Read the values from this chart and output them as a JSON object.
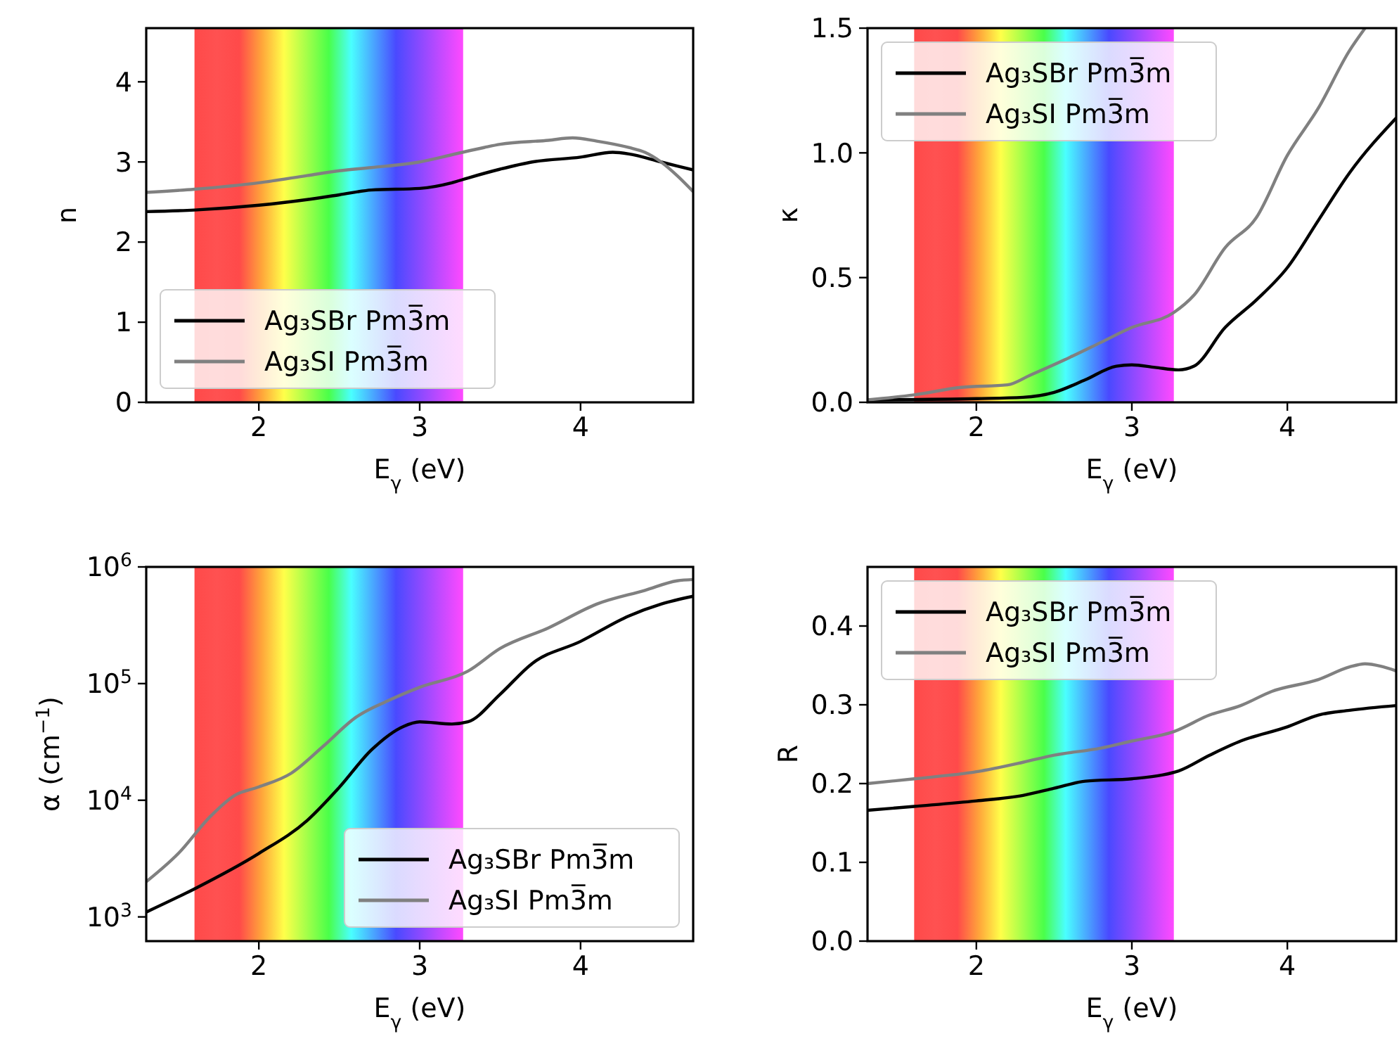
{
  "chart_data": [
    {
      "type": "line",
      "xlabel": "E$_{γ}$ (eV)",
      "ylabel": "n",
      "xlim": [
        1.3,
        4.7
      ],
      "xticks": [
        2,
        3,
        4
      ],
      "ylim": [
        0,
        4.67
      ],
      "yticks": [
        0,
        1,
        2,
        3,
        4
      ],
      "legend": "bottom left",
      "grid": false,
      "bands": [
        {
          "axis": "x",
          "from": 1.6,
          "to": 3.27
        }
      ],
      "series": [
        {
          "name": "Ag₃SBr Pm3̅m",
          "color": "#000000",
          "x": [
            1.3,
            1.6,
            2.0,
            2.3,
            2.5,
            2.7,
            3.0,
            3.2,
            3.3,
            3.5,
            3.7,
            4.0,
            4.2,
            4.3,
            4.5,
            4.7
          ],
          "values": [
            2.38,
            2.4,
            2.46,
            2.53,
            2.59,
            2.65,
            2.67,
            2.74,
            2.8,
            2.91,
            3.0,
            3.06,
            3.12,
            3.1,
            3.0,
            2.9
          ]
        },
        {
          "name": "Ag₃SI Pm3̅m",
          "color": "#808080",
          "x": [
            1.3,
            1.6,
            2.0,
            2.3,
            2.5,
            2.7,
            3.0,
            3.2,
            3.4,
            3.5,
            3.8,
            3.95,
            4.1,
            4.3,
            4.4,
            4.5,
            4.6,
            4.7
          ],
          "values": [
            2.62,
            2.66,
            2.74,
            2.83,
            2.89,
            2.93,
            3.0,
            3.09,
            3.18,
            3.22,
            3.27,
            3.3,
            3.26,
            3.18,
            3.12,
            3.0,
            2.83,
            2.63
          ]
        }
      ]
    },
    {
      "type": "line",
      "xlabel": "E$_{γ}$ (eV)",
      "ylabel": "κ",
      "xlim": [
        1.3,
        4.7
      ],
      "xticks": [
        2,
        3,
        4
      ],
      "ylim": [
        0,
        1.5
      ],
      "yticks": [
        {
          "value": 0,
          "label": "0.0"
        },
        0.5,
        {
          "value": 1,
          "label": "1.0"
        },
        1.5
      ],
      "legend": "top left",
      "grid": false,
      "bands": [
        {
          "axis": "x",
          "from": 1.6,
          "to": 3.27
        }
      ],
      "series": [
        {
          "name": "Ag₃SBr Pm3̅m",
          "color": "#000000",
          "x": [
            1.3,
            2.0,
            2.3,
            2.5,
            2.7,
            2.9,
            3.0,
            3.15,
            3.3,
            3.4,
            3.6,
            3.8,
            4.0,
            4.2,
            4.4,
            4.7
          ],
          "values": [
            0.01,
            0.015,
            0.02,
            0.04,
            0.09,
            0.145,
            0.15,
            0.14,
            0.13,
            0.145,
            0.3,
            0.41,
            0.54,
            0.73,
            0.92,
            1.14
          ]
        },
        {
          "name": "Ag₃SI Pm3̅m",
          "color": "#808080",
          "x": [
            1.3,
            1.6,
            1.9,
            2.2,
            2.35,
            2.6,
            2.8,
            3.0,
            3.27,
            3.4,
            3.6,
            3.8,
            4.0,
            4.2,
            4.4,
            4.5
          ],
          "values": [
            0.01,
            0.03,
            0.06,
            0.07,
            0.11,
            0.18,
            0.24,
            0.3,
            0.36,
            0.43,
            0.62,
            0.74,
            0.99,
            1.18,
            1.41,
            1.5
          ]
        }
      ]
    },
    {
      "type": "line",
      "xlabel": "E$_{γ}$ (eV)",
      "ylabel": "α (cm$^{−1}$)",
      "log": "y",
      "xlim": [
        1.3,
        4.7
      ],
      "xticks": [
        2,
        3,
        4
      ],
      "ylim": [
        620,
        1000000
      ],
      "yticks": [
        {
          "value": 1000,
          "label": "10$^{3}$"
        },
        {
          "value": 10000,
          "label": "10$^{4}$"
        },
        {
          "value": 100000,
          "label": "10$^{5}$"
        },
        {
          "value": 1000000,
          "label": "10$^{6}$"
        }
      ],
      "legend": "bottom right",
      "grid": false,
      "bands": [
        {
          "axis": "x",
          "from": 1.6,
          "to": 3.27
        }
      ],
      "series": [
        {
          "name": "Ag₃SBr Pm3̅m",
          "color": "#000000",
          "x": [
            1.3,
            1.6,
            2.0,
            2.3,
            2.5,
            2.7,
            2.9,
            3.0,
            3.2,
            3.3,
            3.5,
            3.7,
            4.0,
            4.3,
            4.5,
            4.7
          ],
          "values": [
            1100,
            1740,
            3500,
            6700,
            12900,
            27000,
            43000,
            47000,
            45000,
            47000,
            81000,
            149000,
            230000,
            380000,
            480000,
            560000
          ]
        },
        {
          "name": "Ag₃SI Pm3̅m",
          "color": "#808080",
          "x": [
            1.3,
            1.5,
            1.7,
            1.85,
            2.0,
            2.2,
            2.4,
            2.6,
            2.8,
            3.0,
            3.3,
            3.5,
            3.8,
            4.1,
            4.4,
            4.6,
            4.7
          ],
          "values": [
            2000,
            3500,
            7300,
            11000,
            13000,
            17000,
            29000,
            51000,
            71000,
            93000,
            128000,
            200000,
            300000,
            480000,
            630000,
            760000,
            780000
          ]
        }
      ]
    },
    {
      "type": "line",
      "xlabel": "E$_{γ}$ (eV)",
      "ylabel": "R",
      "xlim": [
        1.3,
        4.7
      ],
      "xticks": [
        2,
        3,
        4
      ],
      "ylim": [
        0,
        0.475
      ],
      "yticks": [
        {
          "value": 0,
          "label": "0.0"
        },
        0.1,
        0.2,
        0.3,
        0.4
      ],
      "legend": "top left",
      "grid": false,
      "bands": [
        {
          "axis": "x",
          "from": 1.6,
          "to": 3.27
        }
      ],
      "series": [
        {
          "name": "Ag₃SBr Pm3̅m",
          "color": "#000000",
          "x": [
            1.3,
            1.6,
            2.0,
            2.3,
            2.5,
            2.7,
            3.0,
            3.2,
            3.3,
            3.5,
            3.7,
            4.0,
            4.2,
            4.4,
            4.7
          ],
          "values": [
            0.166,
            0.171,
            0.178,
            0.185,
            0.194,
            0.203,
            0.206,
            0.211,
            0.216,
            0.236,
            0.254,
            0.272,
            0.287,
            0.293,
            0.299
          ]
        },
        {
          "name": "Ag₃SI Pm3̅m",
          "color": "#808080",
          "x": [
            1.3,
            1.6,
            2.0,
            2.3,
            2.5,
            2.8,
            3.0,
            3.27,
            3.5,
            3.7,
            3.9,
            4.2,
            4.4,
            4.5,
            4.6,
            4.7
          ],
          "values": [
            0.2,
            0.206,
            0.215,
            0.227,
            0.236,
            0.245,
            0.254,
            0.266,
            0.287,
            0.299,
            0.317,
            0.332,
            0.348,
            0.352,
            0.349,
            0.343
          ]
        }
      ]
    }
  ]
}
